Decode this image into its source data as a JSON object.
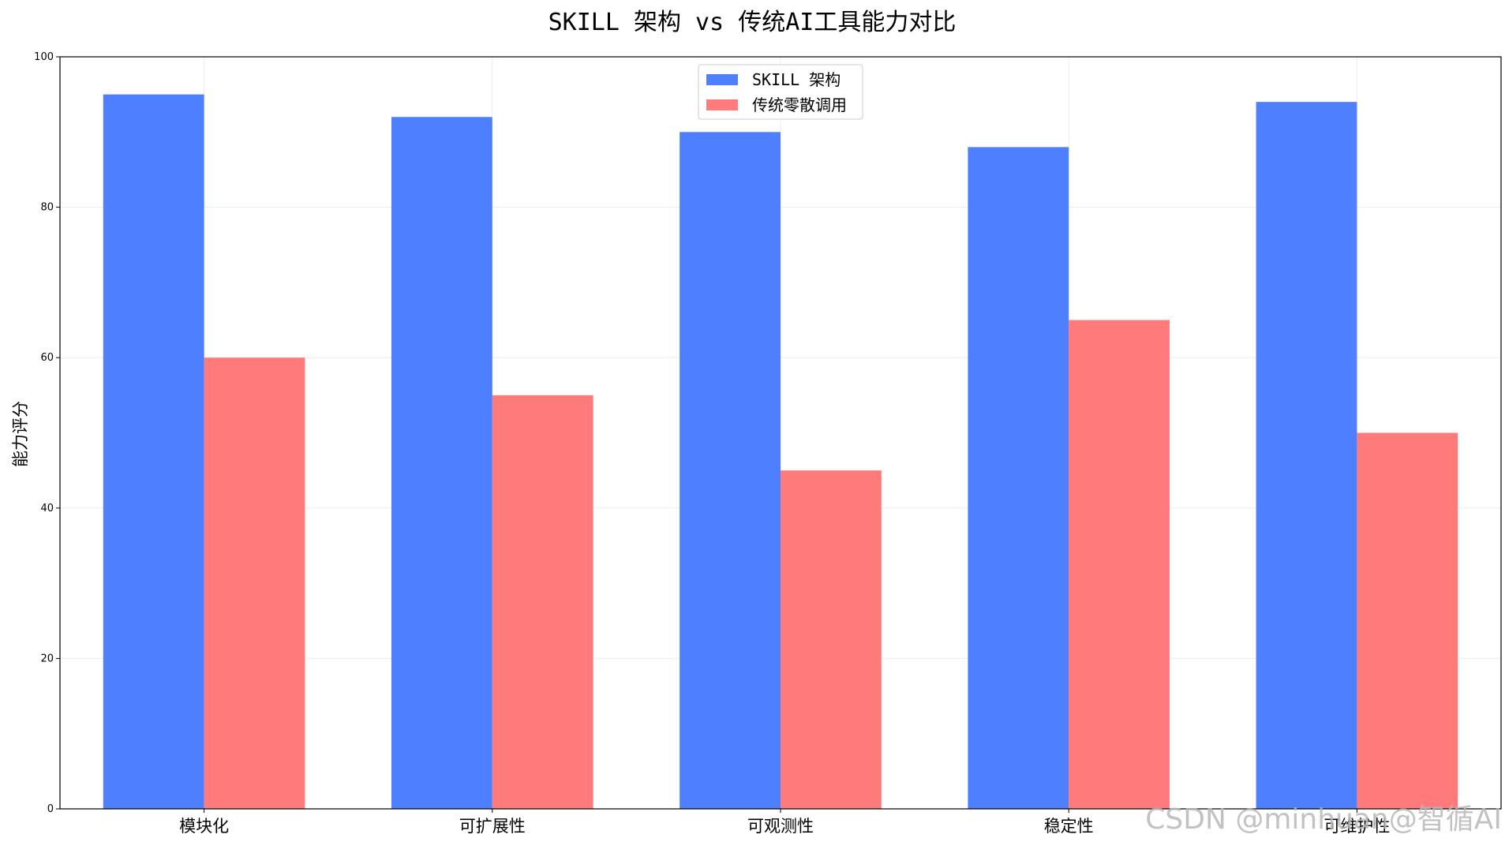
{
  "colors": {
    "series_1": "#4e7fff",
    "series_2": "#ff7b7b",
    "grid": "#ececec",
    "axis": "#000000"
  },
  "chart_data": {
    "type": "bar",
    "title": "SKILL 架构 vs 传统AI工具能力对比",
    "xlabel": "",
    "ylabel": "能力评分",
    "categories": [
      "模块化",
      "可扩展性",
      "可观测性",
      "稳定性",
      "可维护性"
    ],
    "series": [
      {
        "name": "SKILL 架构",
        "values": [
          95,
          92,
          90,
          88,
          94
        ]
      },
      {
        "name": "传统零散调用",
        "values": [
          60,
          55,
          45,
          65,
          50
        ]
      }
    ],
    "ylim": [
      0,
      100
    ],
    "yticks": [
      0,
      20,
      40,
      60,
      80,
      100
    ],
    "grid": true,
    "legend_position": "top-center"
  },
  "watermark": "CSDN @minhuan@智循AI"
}
